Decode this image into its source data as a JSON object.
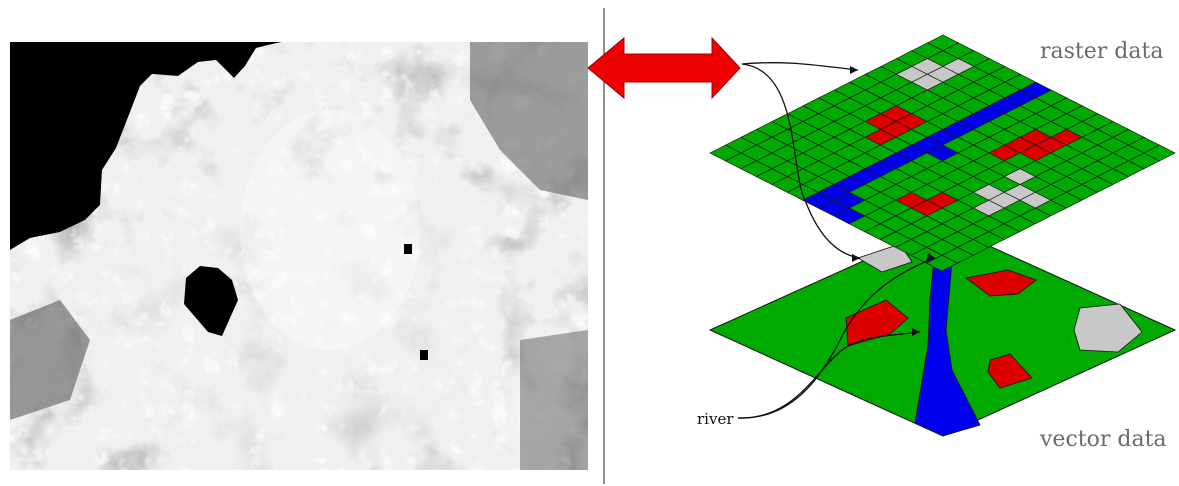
{
  "labels": {
    "raster": "raster data",
    "vector": "vector data",
    "river": "river"
  },
  "raster_grid": {
    "rows": 15,
    "cols": 15,
    "river_cells": [
      [
        0,
        6
      ],
      [
        1,
        6
      ],
      [
        2,
        6
      ],
      [
        3,
        6
      ],
      [
        4,
        6
      ],
      [
        5,
        6
      ],
      [
        6,
        6
      ],
      [
        7,
        6
      ],
      [
        7,
        7
      ],
      [
        8,
        6
      ],
      [
        9,
        6
      ],
      [
        10,
        6
      ],
      [
        11,
        6
      ],
      [
        12,
        6
      ],
      [
        13,
        6
      ],
      [
        13,
        7
      ],
      [
        14,
        6
      ],
      [
        14,
        7
      ],
      [
        14,
        8
      ]
    ],
    "urban_cells": [
      [
        1,
        2
      ],
      [
        2,
        1
      ],
      [
        2,
        2
      ],
      [
        3,
        1
      ],
      [
        3,
        2
      ],
      [
        6,
        11
      ],
      [
        7,
        12
      ],
      [
        7,
        13
      ],
      [
        8,
        11
      ],
      [
        8,
        12
      ],
      [
        9,
        12
      ]
    ],
    "crop_cells": [
      [
        3,
        9
      ],
      [
        3,
        10
      ],
      [
        4,
        9
      ],
      [
        4,
        10
      ],
      [
        5,
        9
      ],
      [
        2,
        10
      ],
      [
        6,
        3
      ],
      [
        6,
        4
      ],
      [
        7,
        3
      ],
      [
        7,
        4
      ],
      [
        8,
        4
      ],
      [
        10,
        10
      ],
      [
        11,
        9
      ],
      [
        11,
        10
      ]
    ]
  },
  "colors": {
    "grass": "#00aa00",
    "river": "#0000ee",
    "urban": "#c8c8c8",
    "crop": "#dd0000",
    "arrow": "#ee0000",
    "gridline": "#1a1a1a",
    "divider": "#444444"
  }
}
